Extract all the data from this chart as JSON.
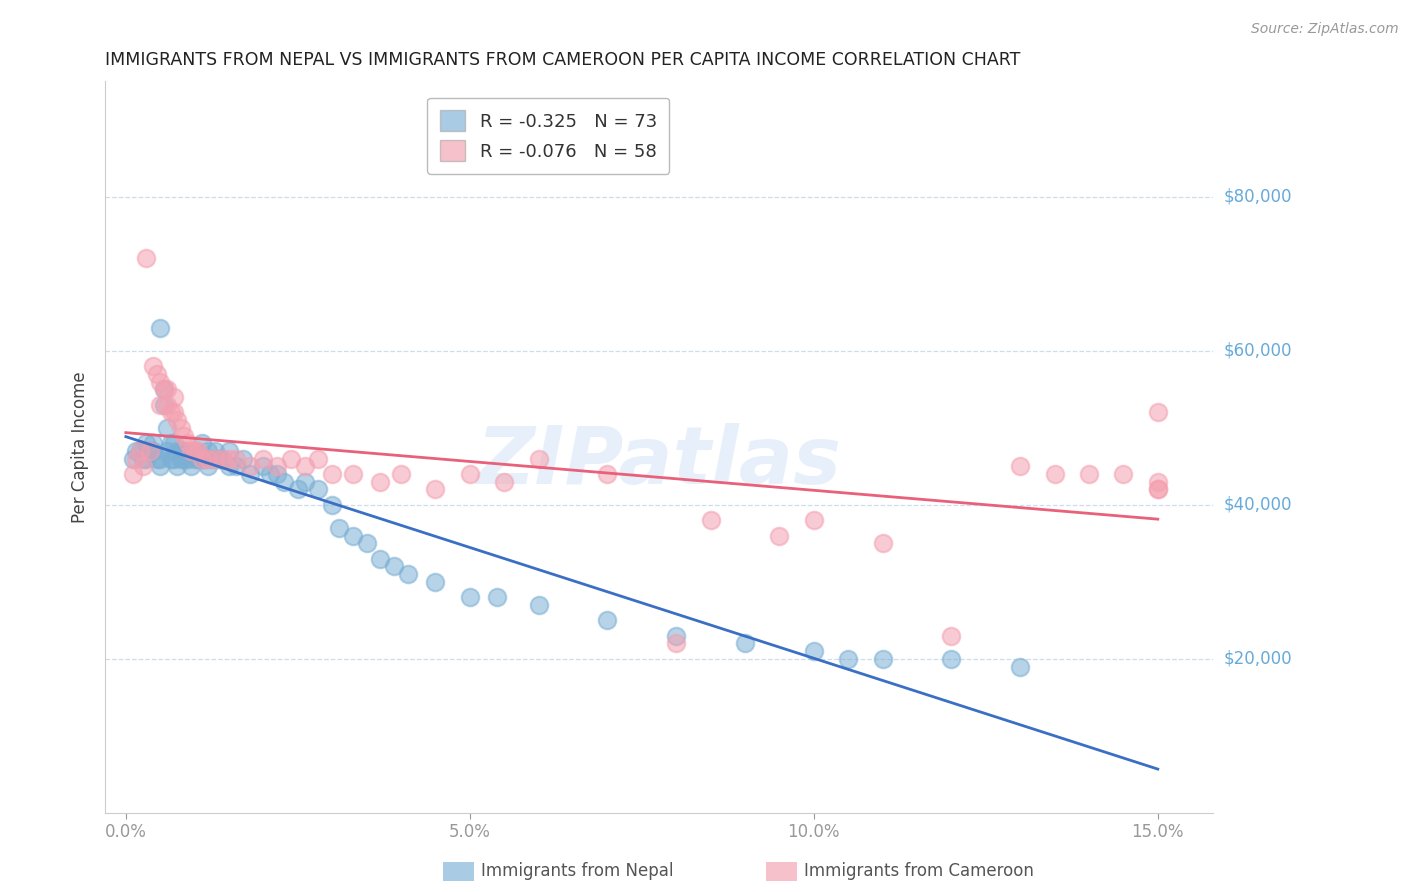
{
  "title": "IMMIGRANTS FROM NEPAL VS IMMIGRANTS FROM CAMEROON PER CAPITA INCOME CORRELATION CHART",
  "source": "Source: ZipAtlas.com",
  "ylabel": "Per Capita Income",
  "ytick_labels": [
    "$20,000",
    "$40,000",
    "$60,000",
    "$80,000"
  ],
  "ytick_vals": [
    20000,
    40000,
    60000,
    80000
  ],
  "xlim": [
    -0.3,
    15.8
  ],
  "ylim": [
    0,
    95000
  ],
  "nepal_R": -0.325,
  "nepal_N": 73,
  "cameroon_R": -0.076,
  "cameroon_N": 58,
  "nepal_color": "#7BAFD4",
  "cameroon_color": "#F4A0B0",
  "nepal_line_color": "#3B6FC4",
  "cameroon_line_color": "#E8607A",
  "watermark": "ZIPatlas",
  "nepal_x": [
    0.1,
    0.15,
    0.2,
    0.25,
    0.3,
    0.3,
    0.35,
    0.4,
    0.4,
    0.45,
    0.5,
    0.5,
    0.5,
    0.55,
    0.55,
    0.6,
    0.6,
    0.65,
    0.65,
    0.7,
    0.7,
    0.75,
    0.75,
    0.8,
    0.8,
    0.85,
    0.85,
    0.9,
    0.9,
    0.95,
    1.0,
    1.0,
    1.05,
    1.1,
    1.1,
    1.15,
    1.2,
    1.2,
    1.25,
    1.3,
    1.35,
    1.4,
    1.5,
    1.5,
    1.6,
    1.7,
    1.8,
    2.0,
    2.1,
    2.2,
    2.3,
    2.5,
    2.6,
    2.8,
    3.0,
    3.1,
    3.3,
    3.5,
    3.7,
    3.9,
    4.1,
    4.5,
    5.0,
    5.4,
    6.0,
    7.0,
    8.0,
    9.0,
    10.0,
    10.5,
    11.0,
    12.0,
    13.0
  ],
  "nepal_y": [
    46000,
    47000,
    47000,
    46000,
    48000,
    46000,
    47000,
    48000,
    47000,
    46000,
    63000,
    46000,
    45000,
    55000,
    53000,
    50000,
    47000,
    48000,
    46000,
    48000,
    46000,
    47000,
    45000,
    47000,
    46000,
    47000,
    46000,
    47000,
    46000,
    45000,
    47000,
    46000,
    46000,
    48000,
    46000,
    46000,
    47000,
    45000,
    46000,
    47000,
    46000,
    46000,
    47000,
    45000,
    45000,
    46000,
    44000,
    45000,
    44000,
    44000,
    43000,
    42000,
    43000,
    42000,
    40000,
    37000,
    36000,
    35000,
    33000,
    32000,
    31000,
    30000,
    28000,
    28000,
    27000,
    25000,
    23000,
    22000,
    21000,
    20000,
    20000,
    20000,
    19000
  ],
  "cameroon_x": [
    0.1,
    0.15,
    0.2,
    0.25,
    0.3,
    0.35,
    0.4,
    0.45,
    0.5,
    0.5,
    0.55,
    0.6,
    0.6,
    0.65,
    0.7,
    0.7,
    0.75,
    0.8,
    0.85,
    0.9,
    0.95,
    1.0,
    1.05,
    1.1,
    1.2,
    1.3,
    1.4,
    1.5,
    1.6,
    1.8,
    2.0,
    2.2,
    2.4,
    2.6,
    2.8,
    3.0,
    3.3,
    3.7,
    4.0,
    4.5,
    5.0,
    5.5,
    6.0,
    7.0,
    8.0,
    8.5,
    9.5,
    10.0,
    11.0,
    12.0,
    13.0,
    13.5,
    14.0,
    14.5,
    15.0,
    15.0,
    15.0,
    15.0
  ],
  "cameroon_y": [
    44000,
    46000,
    47000,
    45000,
    72000,
    47000,
    58000,
    57000,
    56000,
    53000,
    55000,
    55000,
    53000,
    52000,
    54000,
    52000,
    51000,
    50000,
    49000,
    48000,
    47000,
    47000,
    47000,
    46000,
    46000,
    46000,
    46000,
    46000,
    46000,
    45000,
    46000,
    45000,
    46000,
    45000,
    46000,
    44000,
    44000,
    43000,
    44000,
    42000,
    44000,
    43000,
    46000,
    44000,
    22000,
    38000,
    36000,
    38000,
    35000,
    23000,
    45000,
    44000,
    44000,
    44000,
    43000,
    42000,
    42000,
    52000
  ]
}
